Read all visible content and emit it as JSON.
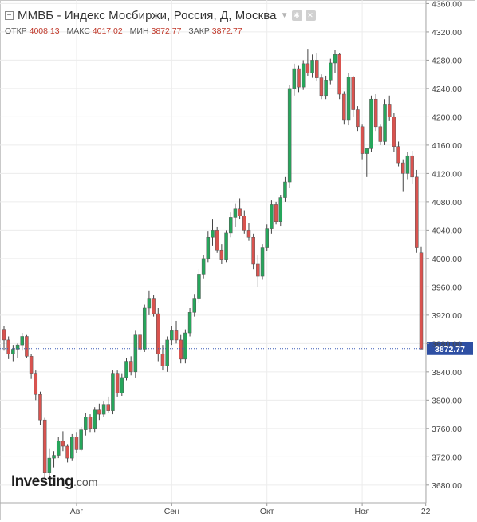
{
  "header": {
    "title": "ММВБ - Индекс Мосбиржи, Россия, Д, Москва",
    "ohlc": [
      {
        "label": "ОТКР",
        "value": "4008.13"
      },
      {
        "label": "МАКС",
        "value": "4017.02"
      },
      {
        "label": "МИН",
        "value": "3872.77"
      },
      {
        "label": "ЗАКР",
        "value": "3872.77"
      }
    ]
  },
  "branding": {
    "logo_main": "Investing",
    "logo_suffix": ".com"
  },
  "icons": [
    "collapse-icon",
    "dropdown-caret-icon",
    "settings-icon",
    "close-icon"
  ],
  "colors": {
    "up": "#26a65b",
    "down": "#d9534f",
    "wick": "#444444",
    "price_line": "#3b5bb5",
    "label_bg": "#2e4fa3",
    "grid": "#ececec"
  },
  "chart_data": {
    "type": "candlestick",
    "title": "ММВБ - Индекс Мосбиржи, Россия, Д, Москва",
    "ylim": [
      3655,
      4365
    ],
    "y_ticks": [
      3680,
      3720,
      3760,
      3800,
      3840,
      3880,
      3920,
      3960,
      4000,
      4040,
      4080,
      4120,
      4160,
      4200,
      4240,
      4280,
      4320,
      4360
    ],
    "y_tick_labels": [
      "3680.00",
      "3720.00",
      "3760.00",
      "3800.00",
      "3840.00",
      "3880.00",
      "3920.00",
      "3960.00",
      "4000.00",
      "4040.00",
      "4080.00",
      "4120.00",
      "4160.00",
      "4200.00",
      "4240.00",
      "4280.00",
      "4320.00",
      "4360.00"
    ],
    "x_labels": [
      {
        "label": "Авг",
        "index": 16
      },
      {
        "label": "Сен",
        "index": 37
      },
      {
        "label": "Окт",
        "index": 58
      },
      {
        "label": "Ноя",
        "index": 79
      },
      {
        "label": "22",
        "index": 93
      }
    ],
    "last_price": 3872.77,
    "last_price_label": "3872.77",
    "grid": true,
    "candles": [
      [
        3900,
        3905,
        3870,
        3885
      ],
      [
        3885,
        3890,
        3858,
        3865
      ],
      [
        3865,
        3878,
        3855,
        3872
      ],
      [
        3872,
        3880,
        3860,
        3878
      ],
      [
        3878,
        3895,
        3870,
        3890
      ],
      [
        3890,
        3892,
        3860,
        3862
      ],
      [
        3862,
        3865,
        3830,
        3838
      ],
      [
        3838,
        3842,
        3800,
        3808
      ],
      [
        3808,
        3812,
        3765,
        3772
      ],
      [
        3772,
        3775,
        3690,
        3698
      ],
      [
        3698,
        3732,
        3690,
        3718
      ],
      [
        3718,
        3728,
        3705,
        3722
      ],
      [
        3722,
        3748,
        3718,
        3742
      ],
      [
        3742,
        3756,
        3728,
        3735
      ],
      [
        3735,
        3738,
        3712,
        3718
      ],
      [
        3718,
        3752,
        3715,
        3748
      ],
      [
        3748,
        3755,
        3725,
        3730
      ],
      [
        3730,
        3762,
        3728,
        3758
      ],
      [
        3758,
        3782,
        3750,
        3776
      ],
      [
        3776,
        3780,
        3755,
        3760
      ],
      [
        3760,
        3790,
        3755,
        3786
      ],
      [
        3786,
        3795,
        3772,
        3780
      ],
      [
        3780,
        3798,
        3776,
        3794
      ],
      [
        3794,
        3805,
        3782,
        3785
      ],
      [
        3785,
        3842,
        3780,
        3838
      ],
      [
        3838,
        3842,
        3805,
        3810
      ],
      [
        3810,
        3838,
        3806,
        3832
      ],
      [
        3832,
        3860,
        3828,
        3855
      ],
      [
        3855,
        3862,
        3835,
        3840
      ],
      [
        3840,
        3898,
        3832,
        3892
      ],
      [
        3892,
        3900,
        3868,
        3872
      ],
      [
        3872,
        3935,
        3868,
        3930
      ],
      [
        3930,
        3955,
        3920,
        3944
      ],
      [
        3944,
        3948,
        3918,
        3922
      ],
      [
        3922,
        3930,
        3855,
        3865
      ],
      [
        3865,
        3878,
        3842,
        3848
      ],
      [
        3848,
        3890,
        3840,
        3885
      ],
      [
        3885,
        3905,
        3878,
        3898
      ],
      [
        3898,
        3912,
        3880,
        3885
      ],
      [
        3885,
        3892,
        3852,
        3858
      ],
      [
        3858,
        3900,
        3852,
        3895
      ],
      [
        3895,
        3930,
        3890,
        3924
      ],
      [
        3924,
        3950,
        3918,
        3944
      ],
      [
        3944,
        3985,
        3938,
        3978
      ],
      [
        3978,
        4005,
        3972,
        4000
      ],
      [
        4000,
        4038,
        3995,
        4030
      ],
      [
        4030,
        4055,
        4018,
        4040
      ],
      [
        4040,
        4045,
        4008,
        4012
      ],
      [
        4012,
        4020,
        3992,
        3998
      ],
      [
        3998,
        4040,
        3995,
        4036
      ],
      [
        4036,
        4065,
        4030,
        4058
      ],
      [
        4058,
        4078,
        4045,
        4070
      ],
      [
        4070,
        4085,
        4055,
        4060
      ],
      [
        4060,
        4068,
        4035,
        4040
      ],
      [
        4040,
        4050,
        4025,
        4030
      ],
      [
        4030,
        4035,
        3985,
        3992
      ],
      [
        3992,
        4005,
        3960,
        3975
      ],
      [
        3975,
        4020,
        3970,
        4015
      ],
      [
        4015,
        4048,
        4010,
        4042
      ],
      [
        4042,
        4082,
        4035,
        4076
      ],
      [
        4076,
        4080,
        4048,
        4052
      ],
      [
        4052,
        4090,
        4046,
        4086
      ],
      [
        4086,
        4115,
        4080,
        4108
      ],
      [
        4108,
        4245,
        4100,
        4240
      ],
      [
        4240,
        4275,
        4230,
        4268
      ],
      [
        4268,
        4272,
        4235,
        4242
      ],
      [
        4242,
        4280,
        4238,
        4275
      ],
      [
        4275,
        4295,
        4258,
        4262
      ],
      [
        4262,
        4288,
        4255,
        4280
      ],
      [
        4280,
        4290,
        4250,
        4255
      ],
      [
        4255,
        4260,
        4225,
        4230
      ],
      [
        4230,
        4258,
        4225,
        4252
      ],
      [
        4252,
        4282,
        4246,
        4276
      ],
      [
        4276,
        4294,
        4262,
        4288
      ],
      [
        4288,
        4290,
        4225,
        4232
      ],
      [
        4232,
        4236,
        4190,
        4196
      ],
      [
        4196,
        4262,
        4188,
        4256
      ],
      [
        4256,
        4258,
        4200,
        4210
      ],
      [
        4210,
        4215,
        4180,
        4186
      ],
      [
        4186,
        4190,
        4140,
        4148
      ],
      [
        4148,
        4152,
        4115,
        4155
      ],
      [
        4155,
        4230,
        4150,
        4225
      ],
      [
        4225,
        4232,
        4180,
        4186
      ],
      [
        4186,
        4190,
        4160,
        4165
      ],
      [
        4165,
        4225,
        4160,
        4218
      ],
      [
        4218,
        4230,
        4195,
        4200
      ],
      [
        4200,
        4205,
        4150,
        4158
      ],
      [
        4158,
        4165,
        4130,
        4135
      ],
      [
        4135,
        4140,
        4095,
        4120
      ],
      [
        4120,
        4150,
        4112,
        4145
      ],
      [
        4145,
        4152,
        4105,
        4115
      ],
      [
        4115,
        4125,
        4008,
        4015
      ],
      [
        4008,
        4017,
        3872,
        3872
      ]
    ]
  }
}
